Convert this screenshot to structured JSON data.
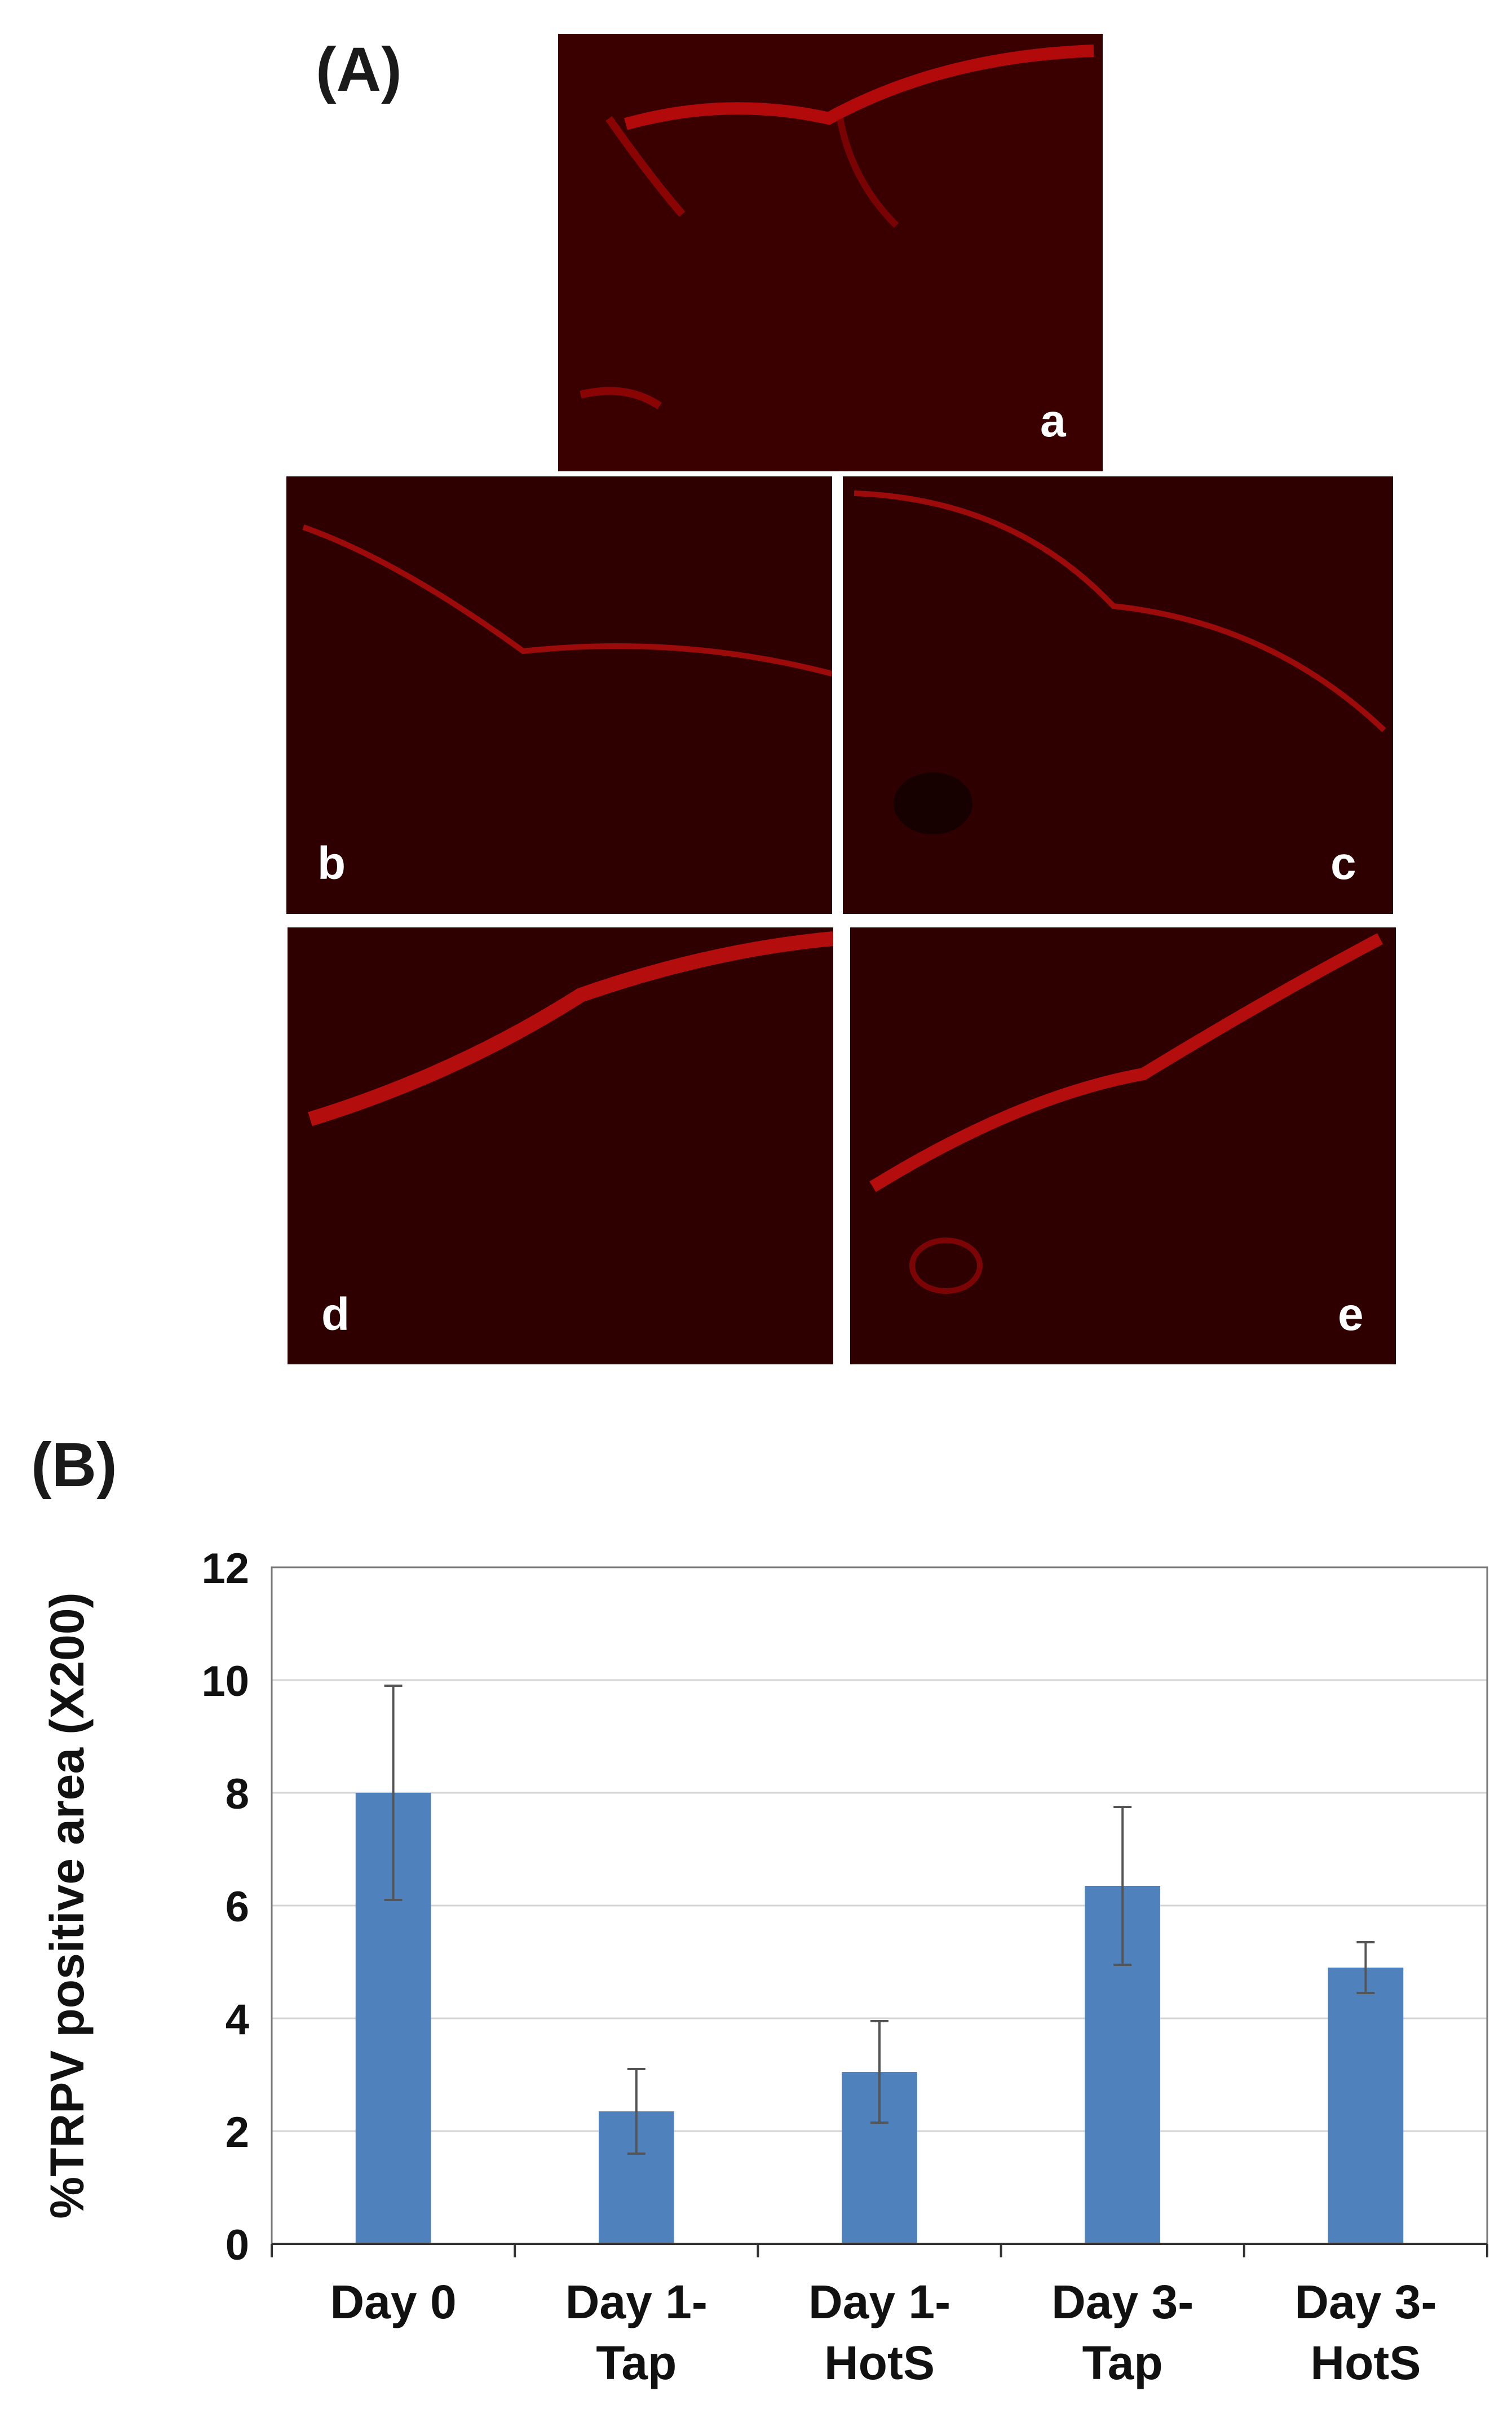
{
  "panel_a_label": "(A)",
  "panel_b_label": "(B)",
  "micrographs": [
    {
      "letter": "a"
    },
    {
      "letter": "b"
    },
    {
      "letter": "c"
    },
    {
      "letter": "d"
    },
    {
      "letter": "e"
    }
  ],
  "colors": {
    "bar": "#4f81bd",
    "micrograph_bg": "#240000",
    "stain": "#e01010"
  },
  "chart_data": {
    "type": "bar",
    "categories": [
      [
        "Day 0"
      ],
      [
        "Day 1-",
        "Tap"
      ],
      [
        "Day 1-",
        "HotS"
      ],
      [
        "Day 3-",
        "Tap"
      ],
      [
        "Day 3-",
        "HotS"
      ]
    ],
    "values": [
      8.0,
      2.35,
      3.05,
      6.35,
      4.9
    ],
    "errors": [
      1.9,
      0.75,
      0.9,
      1.4,
      0.45
    ],
    "ylabel": "%TRPV positive area (X200)",
    "xlabel": "",
    "ylim": [
      0,
      12
    ],
    "yticks": [
      0,
      2,
      4,
      6,
      8,
      10,
      12
    ],
    "grid": true,
    "legend": "none"
  }
}
